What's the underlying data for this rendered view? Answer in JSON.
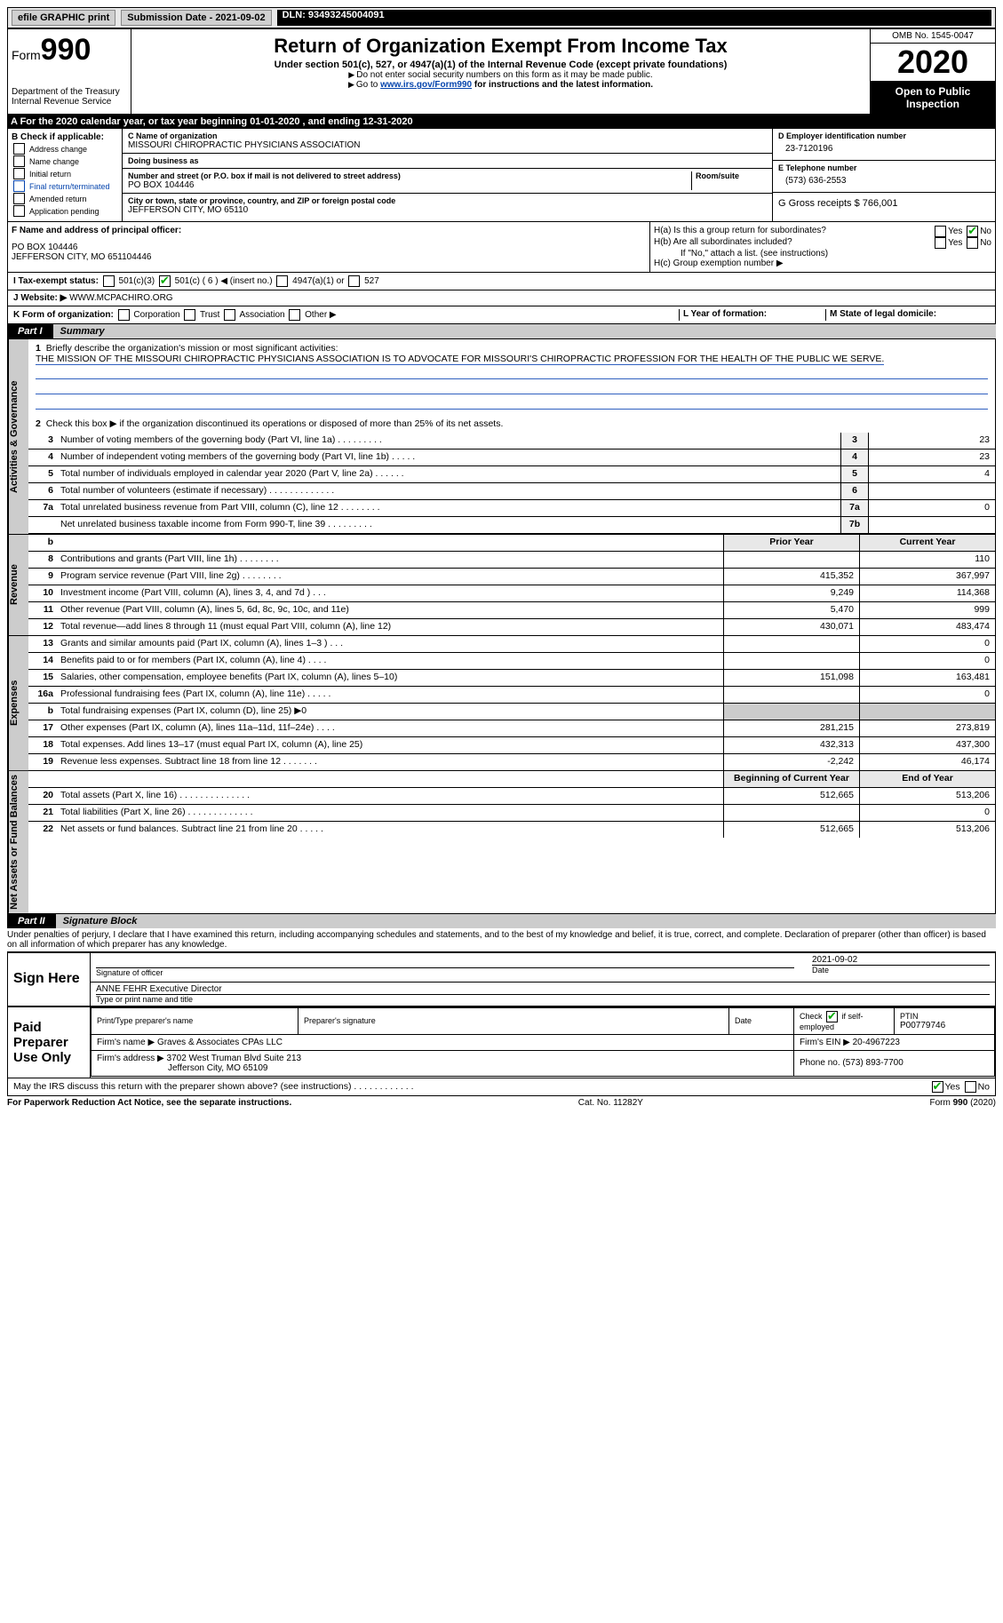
{
  "topbar": {
    "efile": "efile GRAPHIC print",
    "submission_label": "Submission Date - 2021-09-02",
    "dln": "DLN: 93493245004091"
  },
  "header": {
    "form_label": "Form",
    "form_num": "990",
    "dept1": "Department of the Treasury",
    "dept2": "Internal Revenue Service",
    "title": "Return of Organization Exempt From Income Tax",
    "subtitle": "Under section 501(c), 527, or 4947(a)(1) of the Internal Revenue Code (except private foundations)",
    "note1": "Do not enter social security numbers on this form as it may be made public.",
    "note2_pre": "Go to ",
    "note2_link": "www.irs.gov/Form990",
    "note2_post": " for instructions and the latest information.",
    "omb": "OMB No. 1545-0047",
    "year": "2020",
    "inspect": "Open to Public Inspection"
  },
  "period": {
    "text": "A For the 2020 calendar year, or tax year beginning 01-01-2020   , and ending 12-31-2020"
  },
  "boxB": {
    "header": "B Check if applicable:",
    "items": [
      "Address change",
      "Name change",
      "Initial return",
      "Final return/terminated",
      "Amended return",
      "Application pending"
    ]
  },
  "boxC": {
    "name_label": "C Name of organization",
    "name": "MISSOURI CHIROPRACTIC PHYSICIANS ASSOCIATION",
    "dba_label": "Doing business as",
    "addr_label": "Number and street (or P.O. box if mail is not delivered to street address)",
    "room_label": "Room/suite",
    "addr": "PO BOX 104446",
    "city_label": "City or town, state or province, country, and ZIP or foreign postal code",
    "city": "JEFFERSON CITY, MO  65110"
  },
  "boxD": {
    "label": "D Employer identification number",
    "value": "23-7120196",
    "phone_label": "E Telephone number",
    "phone": "(573) 636-2553",
    "gross_label": "G Gross receipts $",
    "gross": "766,001"
  },
  "boxF": {
    "label": "F Name and address of principal officer:",
    "addr1": "PO BOX 104446",
    "addr2": "JEFFERSON CITY, MO  651104446"
  },
  "boxH": {
    "ha": "H(a)  Is this a group return for subordinates?",
    "hb": "H(b)  Are all subordinates included?",
    "hb_note": "If \"No,\" attach a list. (see instructions)",
    "hc": "H(c)  Group exemption number ▶",
    "yes": "Yes",
    "no": "No"
  },
  "boxI": {
    "label": "I   Tax-exempt status:",
    "c3": "501(c)(3)",
    "c": "501(c) ( 6 ) ◀ (insert no.)",
    "a1": "4947(a)(1) or",
    "s527": "527"
  },
  "boxJ": {
    "label": "J   Website: ▶",
    "value": "WWW.MCPACHIRO.ORG"
  },
  "boxK": {
    "label": "K Form of organization:",
    "opts": [
      "Corporation",
      "Trust",
      "Association",
      "Other ▶"
    ]
  },
  "boxL": {
    "label": "L Year of formation:"
  },
  "boxM": {
    "label": "M State of legal domicile:"
  },
  "part1": {
    "tab": "Part I",
    "title": "Summary",
    "l1": "Briefly describe the organization's mission or most significant activities:",
    "mission": "THE MISSION OF THE MISSOURI CHIROPRACTIC PHYSICIANS ASSOCIATION IS TO ADVOCATE FOR MISSOURI'S CHIROPRACTIC PROFESSION FOR THE HEALTH OF THE PUBLIC WE SERVE.",
    "l2": "Check this box ▶       if the organization discontinued its operations or disposed of more than 25% of its net assets.",
    "prior_hdr": "Prior Year",
    "curr_hdr": "Current Year",
    "beg_hdr": "Beginning of Current Year",
    "end_hdr": "End of Year"
  },
  "side": {
    "gov": "Activities & Governance",
    "rev": "Revenue",
    "exp": "Expenses",
    "net": "Net Assets or Fund Balances"
  },
  "lines_gov": [
    {
      "n": "3",
      "t": "Number of voting members of the governing body (Part VI, line 1a)  .  .  .  .  .  .  .  .  .",
      "box": "3",
      "v": "23"
    },
    {
      "n": "4",
      "t": "Number of independent voting members of the governing body (Part VI, line 1b)   .  .  .  .  .",
      "box": "4",
      "v": "23"
    },
    {
      "n": "5",
      "t": "Total number of individuals employed in calendar year 2020 (Part V, line 2a)   .  .  .  .  .  .",
      "box": "5",
      "v": "4"
    },
    {
      "n": "6",
      "t": "Total number of volunteers (estimate if necessary)   .  .  .  .  .  .  .  .  .  .  .  .  .",
      "box": "6",
      "v": ""
    },
    {
      "n": "7a",
      "t": "Total unrelated business revenue from Part VIII, column (C), line 12   .  .  .  .  .  .  .  .",
      "box": "7a",
      "v": "0"
    },
    {
      "n": "",
      "t": "Net unrelated business taxable income from Form 990-T, line 39   .  .  .  .  .  .  .  .  .",
      "box": "7b",
      "v": ""
    }
  ],
  "lines_rev": [
    {
      "n": "8",
      "t": "Contributions and grants (Part VIII, line 1h)   .  .  .  .  .  .  .  .",
      "p": "",
      "c": "110"
    },
    {
      "n": "9",
      "t": "Program service revenue (Part VIII, line 2g)   .  .  .  .  .  .  .  .",
      "p": "415,352",
      "c": "367,997"
    },
    {
      "n": "10",
      "t": "Investment income (Part VIII, column (A), lines 3, 4, and 7d )   .  .  .",
      "p": "9,249",
      "c": "114,368"
    },
    {
      "n": "11",
      "t": "Other revenue (Part VIII, column (A), lines 5, 6d, 8c, 9c, 10c, and 11e)",
      "p": "5,470",
      "c": "999"
    },
    {
      "n": "12",
      "t": "Total revenue—add lines 8 through 11 (must equal Part VIII, column (A), line 12)",
      "p": "430,071",
      "c": "483,474"
    }
  ],
  "lines_exp": [
    {
      "n": "13",
      "t": "Grants and similar amounts paid (Part IX, column (A), lines 1–3 )   .  .  .",
      "p": "",
      "c": "0"
    },
    {
      "n": "14",
      "t": "Benefits paid to or for members (Part IX, column (A), line 4)   .  .  .  .",
      "p": "",
      "c": "0"
    },
    {
      "n": "15",
      "t": "Salaries, other compensation, employee benefits (Part IX, column (A), lines 5–10)",
      "p": "151,098",
      "c": "163,481"
    },
    {
      "n": "16a",
      "t": "Professional fundraising fees (Part IX, column (A), line 11e)   .  .  .  .  .",
      "p": "",
      "c": "0"
    },
    {
      "n": "b",
      "t": "Total fundraising expenses (Part IX, column (D), line 25) ▶0",
      "p": "shade",
      "c": "shade"
    },
    {
      "n": "17",
      "t": "Other expenses (Part IX, column (A), lines 11a–11d, 11f–24e)   .  .  .  .",
      "p": "281,215",
      "c": "273,819"
    },
    {
      "n": "18",
      "t": "Total expenses. Add lines 13–17 (must equal Part IX, column (A), line 25)",
      "p": "432,313",
      "c": "437,300"
    },
    {
      "n": "19",
      "t": "Revenue less expenses. Subtract line 18 from line 12  .  .  .  .  .  .  .",
      "p": "-2,242",
      "c": "46,174"
    }
  ],
  "lines_net": [
    {
      "n": "20",
      "t": "Total assets (Part X, line 16)  .  .  .  .  .  .  .  .  .  .  .  .  .  .",
      "p": "512,665",
      "c": "513,206"
    },
    {
      "n": "21",
      "t": "Total liabilities (Part X, line 26)  .  .  .  .  .  .  .  .  .  .  .  .  .",
      "p": "",
      "c": "0"
    },
    {
      "n": "22",
      "t": "Net assets or fund balances. Subtract line 21 from line 20  .  .  .  .  .",
      "p": "512,665",
      "c": "513,206"
    }
  ],
  "part2": {
    "tab": "Part II",
    "title": "Signature Block",
    "decl": "Under penalties of perjury, I declare that I have examined this return, including accompanying schedules and statements, and to the best of my knowledge and belief, it is true, correct, and complete. Declaration of preparer (other than officer) is based on all information of which preparer has any knowledge."
  },
  "sign": {
    "here": "Sign Here",
    "sig_officer": "Signature of officer",
    "date_label": "Date",
    "date": "2021-09-02",
    "name": "ANNE FEHR Executive Director",
    "name_label": "Type or print name and title"
  },
  "prep": {
    "label": "Paid Preparer Use Only",
    "h1": "Print/Type preparer's name",
    "h2": "Preparer's signature",
    "h3": "Date",
    "h4_pre": "Check",
    "h4_post": "if self-employed",
    "h5": "PTIN",
    "ptin": "P00779746",
    "firm_label": "Firm's name   ▶",
    "firm": "Graves & Associates CPAs LLC",
    "ein_label": "Firm's EIN ▶",
    "ein": "20-4967223",
    "addr_label": "Firm's address ▶",
    "addr1": "3702 West Truman Blvd Suite 213",
    "addr2": "Jefferson City, MO  65109",
    "phone_label": "Phone no.",
    "phone": "(573) 893-7700"
  },
  "discuss": {
    "text": "May the IRS discuss this return with the preparer shown above? (see instructions)   .  .  .  .  .  .  .  .  .  .  .  .",
    "yes": "Yes",
    "no": "No"
  },
  "footer": {
    "left": "For Paperwork Reduction Act Notice, see the separate instructions.",
    "mid": "Cat. No. 11282Y",
    "right": "Form 990 (2020)"
  }
}
